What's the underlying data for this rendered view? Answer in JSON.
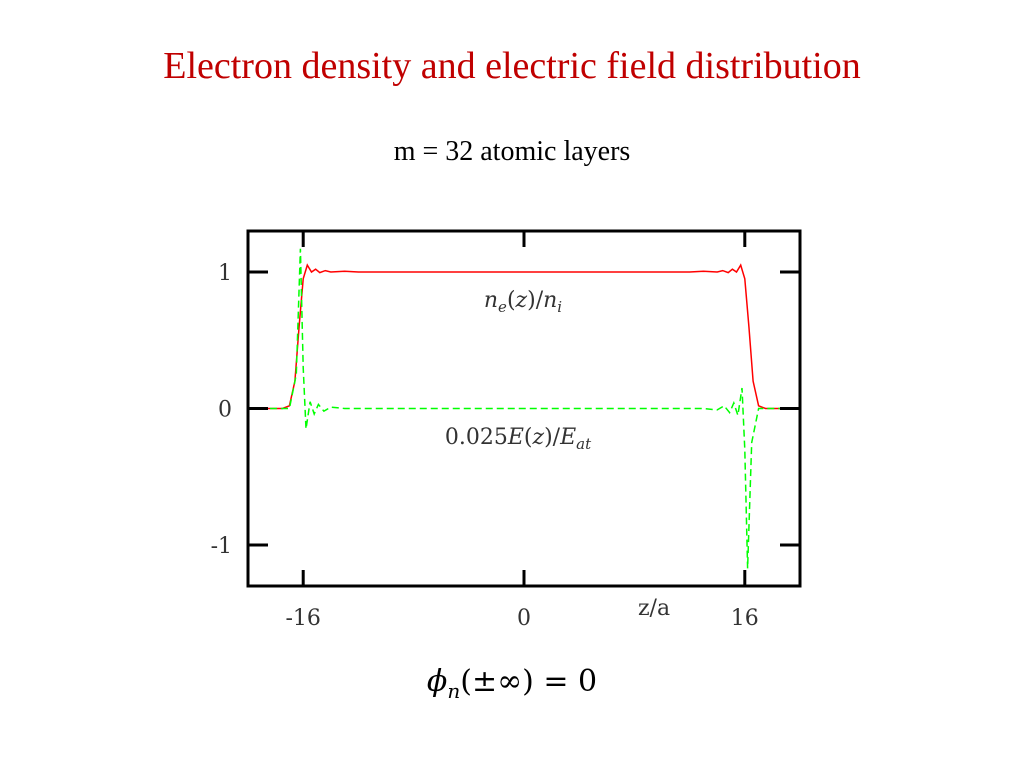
{
  "title": "Electron density and electric field distribution",
  "subtitle": "m = 32 atomic layers",
  "formula": {
    "symbol": "ϕ",
    "subscript": "n",
    "rest": "(±∞) = 0"
  },
  "colors": {
    "title": "#c00000",
    "density_line": "#ff0000",
    "field_line": "#00ff00",
    "frame": "#000000"
  },
  "chart_data": {
    "type": "line",
    "title": "",
    "xlabel": "z/a",
    "ylabel": "",
    "xlim": [
      -20,
      20
    ],
    "ylim": [
      -1.3,
      1.3
    ],
    "x_ticks": [
      {
        "value": -16,
        "label": "-16"
      },
      {
        "value": 0,
        "label": "0"
      },
      {
        "value": 16,
        "label": "16"
      }
    ],
    "y_ticks": [
      {
        "value": 1,
        "label": "1"
      },
      {
        "value": 0,
        "label": "0"
      },
      {
        "value": -1,
        "label": "-1"
      }
    ],
    "grid": false,
    "legend": "none",
    "series": [
      {
        "label": "n_e(z)/n_i",
        "color": "#ff0000",
        "style": "solid",
        "points": [
          [
            -20,
            0.0
          ],
          [
            -17.5,
            0.0
          ],
          [
            -17.0,
            0.02
          ],
          [
            -16.6,
            0.2
          ],
          [
            -16.3,
            0.6
          ],
          [
            -16.0,
            0.95
          ],
          [
            -15.7,
            1.05
          ],
          [
            -15.4,
            1.0
          ],
          [
            -15.1,
            1.02
          ],
          [
            -14.8,
            0.995
          ],
          [
            -14.4,
            1.01
          ],
          [
            -14.0,
            1.0
          ],
          [
            -13.0,
            1.005
          ],
          [
            -12.0,
            1.0
          ],
          [
            -8,
            1.0
          ],
          [
            0,
            1.0
          ],
          [
            8,
            1.0
          ],
          [
            12.0,
            1.0
          ],
          [
            13.0,
            1.005
          ],
          [
            14.0,
            1.0
          ],
          [
            14.4,
            1.01
          ],
          [
            14.8,
            0.995
          ],
          [
            15.1,
            1.02
          ],
          [
            15.4,
            1.0
          ],
          [
            15.7,
            1.05
          ],
          [
            16.0,
            0.95
          ],
          [
            16.3,
            0.6
          ],
          [
            16.6,
            0.2
          ],
          [
            17.0,
            0.02
          ],
          [
            17.5,
            0.0
          ],
          [
            20,
            0.0
          ]
        ]
      },
      {
        "label": "0.025E(z)/E_at",
        "color": "#00ff00",
        "style": "dashed",
        "points": [
          [
            -20,
            0.0
          ],
          [
            -17.0,
            0.0
          ],
          [
            -16.5,
            0.25
          ],
          [
            -16.2,
            1.17
          ],
          [
            -16.0,
            0.3
          ],
          [
            -15.8,
            -0.15
          ],
          [
            -15.5,
            0.05
          ],
          [
            -15.2,
            -0.04
          ],
          [
            -14.9,
            0.03
          ],
          [
            -14.5,
            -0.02
          ],
          [
            -14.0,
            0.01
          ],
          [
            -13.0,
            0.0
          ],
          [
            -10,
            0.0
          ],
          [
            0,
            0.0
          ],
          [
            10,
            0.0
          ],
          [
            13.0,
            0.0
          ],
          [
            14.0,
            -0.01
          ],
          [
            14.5,
            0.02
          ],
          [
            14.9,
            -0.03
          ],
          [
            15.2,
            0.04
          ],
          [
            15.5,
            -0.05
          ],
          [
            15.8,
            0.15
          ],
          [
            16.0,
            -0.3
          ],
          [
            16.2,
            -1.17
          ],
          [
            16.5,
            -0.25
          ],
          [
            17.0,
            0.0
          ],
          [
            20,
            0.0
          ]
        ]
      }
    ],
    "annotations": [
      {
        "text": "n_e(z)/n_i",
        "x": 0.4,
        "y": 0.8
      },
      {
        "text": "0.025E(z)/E_at",
        "x": 0.5,
        "y": -0.2
      }
    ]
  }
}
